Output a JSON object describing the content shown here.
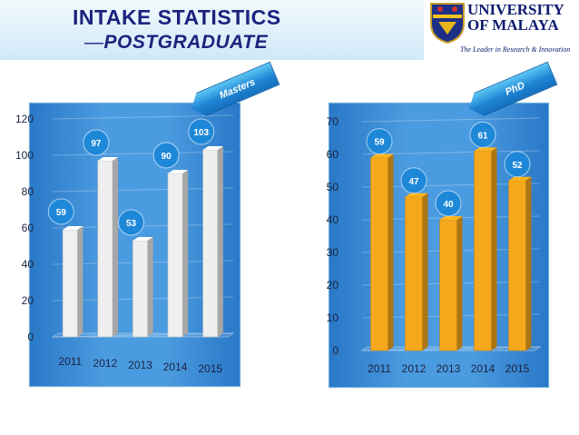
{
  "header": {
    "title_line1": "INTAKE STATISTICS",
    "title_dash": "—",
    "title_line2": "POSTGRADUATE",
    "logo_name_line1": "UNIVERSITY",
    "logo_name_line2": "OF MALAYA",
    "logo_tagline": "The Leader in Research & Innovation"
  },
  "colors": {
    "title": "#1a237e",
    "panel": "#3e8fd9",
    "masters_bar": "#efefef",
    "phd_bar": "#f6a81c",
    "data_label_bubble": "#1e88d8"
  },
  "chart_data": [
    {
      "type": "bar",
      "banner": "Masters",
      "categories": [
        "2011",
        "2012",
        "2013",
        "2014",
        "2015"
      ],
      "values": [
        59,
        97,
        53,
        90,
        103
      ],
      "data_labels": [
        "59",
        "97",
        "53",
        "90",
        "103"
      ],
      "y_ticks": [
        "0",
        "20",
        "40",
        "60",
        "80",
        "100",
        "120"
      ],
      "ylim": [
        0,
        120
      ],
      "title": "",
      "xlabel": "",
      "ylabel": "",
      "grid": true,
      "style": "3d"
    },
    {
      "type": "bar",
      "banner": "PhD",
      "categories": [
        "2011",
        "2012",
        "2013",
        "2014",
        "2015"
      ],
      "values": [
        59,
        47,
        40,
        61,
        52
      ],
      "data_labels": [
        "59",
        "47",
        "40",
        "61",
        "52"
      ],
      "y_ticks": [
        "0",
        "10",
        "20",
        "30",
        "40",
        "50",
        "60",
        "70"
      ],
      "ylim": [
        0,
        70
      ],
      "title": "",
      "xlabel": "",
      "ylabel": "",
      "grid": true,
      "style": "3d"
    }
  ]
}
